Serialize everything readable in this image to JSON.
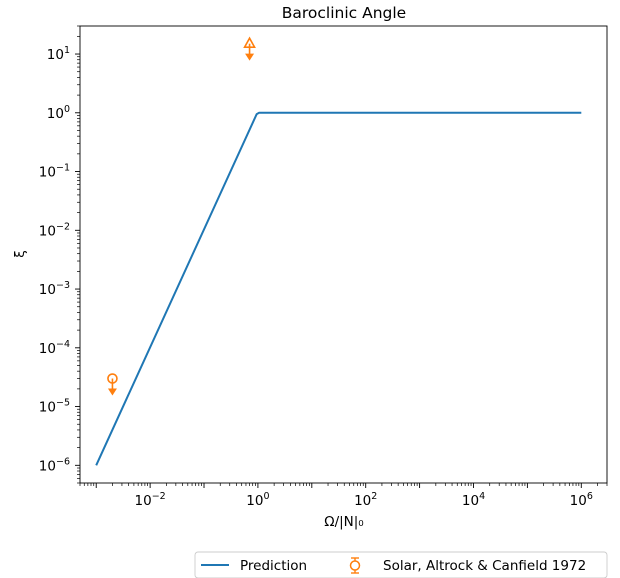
{
  "chart_data": {
    "type": "line",
    "title": "Baroclinic Angle",
    "xlabel": "Ω/|N|₀",
    "ylabel": "ξ",
    "x_scale": "log",
    "y_scale": "log",
    "xlim": [
      0.0005,
      3000000
    ],
    "ylim": [
      5e-07,
      30
    ],
    "x_ticks": [
      {
        "value": 0.01,
        "base": "10",
        "exp": "−2"
      },
      {
        "value": 1,
        "base": "10",
        "exp": "0"
      },
      {
        "value": 100,
        "base": "10",
        "exp": "2"
      },
      {
        "value": 10000,
        "base": "10",
        "exp": "4"
      },
      {
        "value": 1000000,
        "base": "10",
        "exp": "6"
      }
    ],
    "y_ticks": [
      {
        "value": 1e-06,
        "base": "10",
        "exp": "−6"
      },
      {
        "value": 1e-05,
        "base": "10",
        "exp": "−5"
      },
      {
        "value": 0.0001,
        "base": "10",
        "exp": "−4"
      },
      {
        "value": 0.001,
        "base": "10",
        "exp": "−3"
      },
      {
        "value": 0.01,
        "base": "10",
        "exp": "−2"
      },
      {
        "value": 0.1,
        "base": "10",
        "exp": "−1"
      },
      {
        "value": 1,
        "base": "10",
        "exp": "0"
      },
      {
        "value": 10,
        "base": "10",
        "exp": "1"
      }
    ],
    "series": [
      {
        "name": "Prediction",
        "color": "#1f77b4",
        "x": [
          0.001,
          0.95,
          1.05,
          1000000
        ],
        "y": [
          1e-06,
          0.95,
          1,
          1
        ]
      }
    ],
    "markers": [
      {
        "name": "Solar, Altrock & Canfield 1972",
        "color": "#ff7f0e",
        "points": [
          {
            "x": 0.002,
            "y": 3e-05,
            "symbol": "circle",
            "upper_limit": true
          },
          {
            "x": 0.7,
            "y": 15,
            "symbol": "triangle",
            "upper_limit": true
          }
        ]
      }
    ],
    "grid": false,
    "legend_position": "bottom-right"
  }
}
